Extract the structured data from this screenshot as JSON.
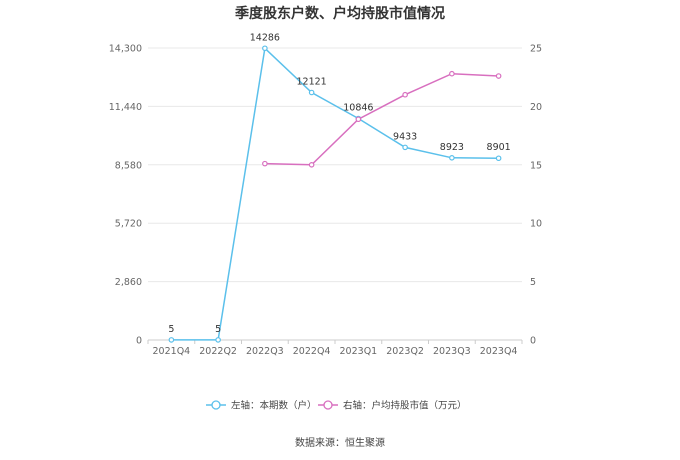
{
  "chart_data": {
    "type": "line",
    "title": "季度股东户数、户均持股市值情况",
    "categories": [
      "2021Q4",
      "2022Q2",
      "2022Q3",
      "2022Q4",
      "2023Q1",
      "2023Q2",
      "2023Q3",
      "2023Q4"
    ],
    "left_axis": {
      "ticks": [
        "0",
        "2,860",
        "5,720",
        "8,580",
        "11,440",
        "14,300"
      ],
      "ylim": [
        0,
        14300
      ]
    },
    "right_axis": {
      "ticks": [
        "0",
        "5",
        "10",
        "15",
        "20",
        "25"
      ],
      "ylim": [
        0,
        25
      ]
    },
    "series": [
      {
        "name": "左轴：本期数（户）",
        "axis": "left",
        "color": "#5bc0eb",
        "values": [
          5,
          5,
          14286,
          12121,
          10846,
          9433,
          8923,
          8901
        ],
        "labels": [
          "5",
          "5",
          "14286",
          "12121",
          "10846",
          "9433",
          "8923",
          "8901"
        ]
      },
      {
        "name": "右轴：户均持股市值（万元）",
        "axis": "right",
        "color": "#d86fbf",
        "values": [
          null,
          null,
          15.1,
          15.0,
          18.9,
          21.0,
          22.8,
          22.6
        ]
      }
    ],
    "grid": "horizontal",
    "legend": "bottom"
  },
  "source": "数据来源：恒生聚源"
}
